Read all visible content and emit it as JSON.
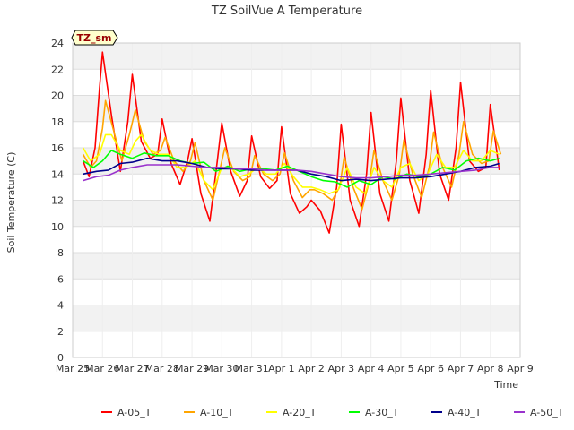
{
  "chart_data": {
    "type": "line",
    "title": "TZ SoilVue A Temperature",
    "xlabel": "Time",
    "ylabel": "Soil Temperature (C)",
    "ylim": [
      0,
      24
    ],
    "xlim": [
      0,
      15
    ],
    "yticks": [
      0,
      2,
      4,
      6,
      8,
      10,
      12,
      14,
      16,
      18,
      20,
      22,
      24
    ],
    "xticks": [
      {
        "day": 0,
        "label": "Mar 25"
      },
      {
        "day": 1,
        "label": "Mar 26"
      },
      {
        "day": 2,
        "label": "Mar 27"
      },
      {
        "day": 3,
        "label": "Mar 28"
      },
      {
        "day": 4,
        "label": "Mar 29"
      },
      {
        "day": 5,
        "label": "Mar 30"
      },
      {
        "day": 6,
        "label": "Mar 31"
      },
      {
        "day": 7,
        "label": "Apr 1"
      },
      {
        "day": 8,
        "label": "Apr 2"
      },
      {
        "day": 9,
        "label": "Apr 3"
      },
      {
        "day": 10,
        "label": "Apr 4"
      },
      {
        "day": 11,
        "label": "Apr 5"
      },
      {
        "day": 12,
        "label": "Apr 6"
      },
      {
        "day": 13,
        "label": "Apr 7"
      },
      {
        "day": 14,
        "label": "Apr 8"
      },
      {
        "day": 15,
        "label": "Apr 9"
      }
    ],
    "x_unit": "days since Mar 25",
    "annotation": "TZ_sm",
    "grid": true,
    "legend": "bottom",
    "series": [
      {
        "name": "A-05_T",
        "color": "#ff0000",
        "x": [
          0.35,
          0.55,
          0.75,
          0.9,
          1.0,
          1.3,
          1.6,
          1.85,
          2.0,
          2.3,
          2.6,
          2.85,
          3.0,
          3.3,
          3.6,
          3.85,
          4.0,
          4.3,
          4.6,
          4.85,
          5.0,
          5.3,
          5.6,
          5.85,
          6.0,
          6.3,
          6.6,
          6.85,
          7.0,
          7.3,
          7.6,
          7.85,
          8.0,
          8.3,
          8.6,
          8.85,
          9.0,
          9.3,
          9.6,
          9.85,
          10.0,
          10.3,
          10.6,
          10.85,
          11.0,
          11.3,
          11.6,
          11.85,
          12.0,
          12.3,
          12.6,
          12.85,
          13.0,
          13.3,
          13.6,
          13.85,
          14.0,
          14.3
        ],
        "y": [
          15.0,
          13.8,
          16.0,
          20.5,
          23.3,
          18.5,
          14.2,
          18.0,
          21.6,
          16.5,
          15.2,
          15.5,
          18.2,
          14.8,
          13.2,
          15.0,
          16.7,
          12.5,
          10.4,
          15.0,
          17.9,
          14.2,
          12.3,
          13.5,
          16.9,
          13.8,
          12.9,
          13.5,
          17.6,
          12.5,
          11.0,
          11.5,
          12.0,
          11.2,
          9.5,
          13.0,
          17.8,
          12.0,
          10.0,
          14.0,
          18.7,
          12.5,
          10.4,
          15.0,
          19.8,
          13.5,
          11.0,
          15.5,
          20.4,
          14.0,
          12.0,
          16.0,
          21.0,
          15.0,
          14.2,
          14.5,
          19.3,
          14.3
        ]
      },
      {
        "name": "A-10_T",
        "color": "#ffa500",
        "x": [
          0.35,
          0.6,
          0.8,
          1.0,
          1.1,
          1.35,
          1.65,
          1.9,
          2.1,
          2.4,
          2.7,
          2.95,
          3.1,
          3.4,
          3.7,
          3.95,
          4.1,
          4.4,
          4.7,
          4.95,
          5.1,
          5.4,
          5.7,
          5.95,
          6.1,
          6.4,
          6.7,
          6.95,
          7.1,
          7.4,
          7.7,
          7.95,
          8.1,
          8.4,
          8.7,
          8.95,
          9.1,
          9.4,
          9.7,
          9.95,
          10.1,
          10.4,
          10.7,
          10.95,
          11.1,
          11.4,
          11.7,
          11.95,
          12.1,
          12.4,
          12.7,
          12.95,
          13.1,
          13.4,
          13.7,
          13.95,
          14.1,
          14.35
        ],
        "y": [
          15.5,
          14.5,
          15.0,
          17.5,
          19.6,
          17.5,
          15.0,
          17.0,
          18.9,
          16.5,
          15.5,
          15.8,
          16.8,
          15.0,
          14.2,
          15.0,
          16.4,
          13.5,
          12.0,
          14.5,
          16.0,
          14.2,
          13.5,
          13.8,
          15.4,
          14.0,
          13.5,
          14.0,
          15.6,
          13.5,
          12.2,
          12.8,
          12.8,
          12.5,
          12.0,
          13.0,
          15.3,
          13.0,
          11.3,
          13.5,
          15.8,
          13.5,
          12.0,
          14.0,
          16.6,
          14.0,
          12.2,
          14.5,
          17.2,
          14.5,
          13.0,
          15.5,
          18.0,
          15.5,
          14.8,
          15.0,
          17.3,
          15.5
        ]
      },
      {
        "name": "A-20_T",
        "color": "#ffff00",
        "x": [
          0.35,
          0.6,
          0.9,
          1.1,
          1.3,
          1.6,
          1.9,
          2.1,
          2.3,
          2.6,
          2.9,
          3.2,
          3.5,
          3.8,
          4.1,
          4.4,
          4.7,
          5.0,
          5.3,
          5.6,
          5.9,
          6.2,
          6.5,
          6.8,
          7.1,
          7.4,
          7.7,
          8.0,
          8.3,
          8.6,
          8.9,
          9.2,
          9.5,
          9.8,
          10.1,
          10.4,
          10.7,
          11.0,
          11.3,
          11.6,
          11.9,
          12.2,
          12.5,
          12.8,
          13.1,
          13.4,
          13.7,
          14.0,
          14.3
        ],
        "y": [
          16.0,
          15.0,
          15.5,
          17.0,
          17.0,
          15.8,
          15.5,
          16.5,
          17.0,
          15.8,
          15.5,
          15.5,
          14.5,
          14.5,
          15.0,
          13.5,
          12.8,
          14.5,
          14.5,
          13.8,
          14.0,
          14.5,
          14.0,
          14.0,
          14.8,
          13.8,
          13.0,
          13.0,
          12.8,
          12.5,
          12.8,
          14.5,
          13.0,
          12.5,
          14.5,
          13.5,
          13.0,
          14.5,
          14.8,
          13.5,
          14.0,
          15.5,
          14.5,
          14.5,
          15.8,
          15.0,
          15.0,
          15.8,
          15.5
        ]
      },
      {
        "name": "A-30_T",
        "color": "#00ff00",
        "x": [
          0.35,
          0.7,
          1.0,
          1.3,
          1.6,
          2.0,
          2.4,
          2.8,
          3.2,
          3.6,
          4.0,
          4.4,
          4.8,
          5.2,
          5.6,
          6.0,
          6.4,
          6.8,
          7.2,
          7.6,
          8.0,
          8.4,
          8.8,
          9.2,
          9.6,
          10.0,
          10.4,
          10.8,
          11.2,
          11.6,
          12.0,
          12.4,
          12.8,
          13.2,
          13.6,
          14.0,
          14.3
        ],
        "y": [
          15.0,
          14.5,
          15.0,
          15.8,
          15.5,
          15.2,
          15.6,
          15.4,
          15.4,
          15.0,
          14.8,
          14.9,
          14.2,
          14.6,
          14.2,
          14.4,
          14.4,
          14.3,
          14.6,
          14.2,
          13.8,
          13.5,
          13.4,
          13.0,
          13.5,
          13.2,
          13.8,
          13.6,
          14.0,
          13.8,
          14.0,
          14.5,
          14.3,
          15.0,
          15.2,
          15.0,
          15.2
        ]
      },
      {
        "name": "A-40_T",
        "color": "#00008b",
        "x": [
          0.35,
          0.8,
          1.2,
          1.6,
          2.0,
          2.5,
          3.0,
          3.5,
          4.0,
          4.5,
          5.0,
          5.5,
          6.0,
          6.5,
          7.0,
          7.5,
          8.0,
          8.5,
          9.0,
          9.5,
          10.0,
          10.5,
          11.0,
          11.5,
          12.0,
          12.5,
          13.0,
          13.5,
          14.0,
          14.3
        ],
        "y": [
          14.0,
          14.2,
          14.3,
          14.8,
          14.9,
          15.2,
          15.0,
          15.0,
          14.8,
          14.5,
          14.4,
          14.4,
          14.3,
          14.3,
          14.3,
          14.3,
          14.0,
          13.8,
          13.5,
          13.6,
          13.5,
          13.6,
          13.7,
          13.7,
          13.8,
          14.0,
          14.2,
          14.5,
          14.6,
          14.8
        ]
      },
      {
        "name": "A-50_T",
        "color": "#9932cc",
        "x": [
          0.35,
          0.8,
          1.2,
          1.6,
          2.0,
          2.5,
          3.0,
          3.5,
          4.0,
          4.5,
          5.0,
          5.5,
          6.0,
          6.5,
          7.0,
          7.5,
          8.0,
          8.5,
          9.0,
          9.5,
          10.0,
          10.5,
          11.0,
          11.5,
          12.0,
          12.5,
          13.0,
          13.5,
          14.0,
          14.3
        ],
        "y": [
          13.5,
          13.8,
          13.9,
          14.3,
          14.5,
          14.7,
          14.7,
          14.7,
          14.6,
          14.5,
          14.5,
          14.4,
          14.4,
          14.3,
          14.3,
          14.3,
          14.2,
          14.0,
          13.8,
          13.7,
          13.7,
          13.8,
          13.9,
          13.9,
          14.0,
          14.1,
          14.2,
          14.3,
          14.5,
          14.5
        ]
      }
    ]
  }
}
